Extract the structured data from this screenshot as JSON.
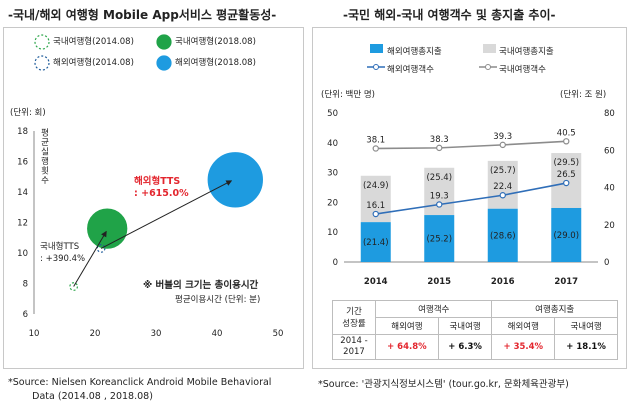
{
  "left": {
    "title": "-국내/해외 여행형 Mobile App서비스 평균활동성-",
    "legend": [
      {
        "label": "국내여행형(2014.08)",
        "style": "dashed",
        "color": "#2da64b"
      },
      {
        "label": "국내여행형(2018.08)",
        "style": "solid",
        "color": "#20a348"
      },
      {
        "label": "해외여행형(2014.08)",
        "style": "dashed",
        "color": "#1e5b9a"
      },
      {
        "label": "해외여행형(2018.08)",
        "style": "solid",
        "color": "#1e9be0"
      }
    ],
    "unit": "(단위: 회)",
    "ylabel": "평균실행횟수",
    "note": "※ 버블의 크기는 총이용시간",
    "xlabel": "평균이용시간 (단위: 분)",
    "annot_overseas": "해외형TTS\n: +615.0%",
    "annot_domestic": "국내형TTS\n: +390.4%"
  },
  "right": {
    "title": "-국민 해외-국내 여행객수 및 총지출 추이-",
    "legend": [
      {
        "label": "해외여행총지출",
        "kind": "bar",
        "color": "#1e9be0"
      },
      {
        "label": "국내여행총지출",
        "kind": "bar",
        "color": "#d9d9d9"
      },
      {
        "label": "해외여행객수",
        "kind": "line",
        "color": "#2f6eb8"
      },
      {
        "label": "국내여행객수",
        "kind": "line",
        "color": "#8c8c8c"
      }
    ],
    "unit_left": "(단위: 백만 명)",
    "unit_right": "(단위: 조 원)",
    "table": {
      "h_period": "기간",
      "h_growth": "성장률",
      "h_travelers": "여행객수",
      "h_spending": "여행총지출",
      "sub": [
        "해외여행",
        "국내여행",
        "해외여행",
        "국내여행"
      ],
      "period": "2014 - 2017",
      "values": [
        "+ 64.8%",
        "+ 6.3%",
        "+ 35.4%",
        "+ 18.1%"
      ]
    }
  },
  "source_left": "*Source: Nielsen Koreanclick Android Mobile Behavioral\n        Data (2014.08 , 2018.08)",
  "source_right": "*Source: '관광지식정보시스템' (tour.go.kr, 문화체육관광부)",
  "chart_data": [
    {
      "type": "scatter",
      "title": "-국내/해외 여행형 Mobile App서비스 평균활동성-",
      "xlabel": "평균이용시간 (단위: 분)",
      "ylabel": "평균실행횟수",
      "xlim": [
        10,
        50
      ],
      "ylim": [
        6,
        18
      ],
      "xticks": [
        10,
        20,
        30,
        40,
        50
      ],
      "yticks": [
        6,
        8,
        10,
        12,
        14,
        16,
        18
      ],
      "series": [
        {
          "name": "국내여행형(2014.08)",
          "x": 16.5,
          "y": 7.8,
          "size": 0.06
        },
        {
          "name": "국내여행형(2018.08)",
          "x": 22.0,
          "y": 11.6,
          "size": 0.31
        },
        {
          "name": "해외여행형(2014.08)",
          "x": 21.0,
          "y": 10.3,
          "size": 0.06
        },
        {
          "name": "해외여행형(2018.08)",
          "x": 43.0,
          "y": 14.8,
          "size": 0.43
        }
      ]
    },
    {
      "type": "bar",
      "title": "-국민 해외-국내 여행객수 및 총지출 추이-",
      "categories": [
        "2014",
        "2015",
        "2016",
        "2017"
      ],
      "y_left_ticks": [
        0,
        10,
        20,
        30,
        40,
        50
      ],
      "y_right_ticks": [
        0,
        20,
        40,
        60,
        80
      ],
      "ylim_left": [
        0,
        50
      ],
      "ylim_right": [
        0,
        80
      ],
      "series": [
        {
          "name": "해외여행총지출",
          "kind": "bar",
          "axis": "right",
          "values": [
            21.4,
            25.2,
            28.6,
            29.0
          ]
        },
        {
          "name": "국내여행총지출",
          "kind": "bar",
          "axis": "right",
          "values": [
            24.9,
            25.4,
            25.7,
            29.5
          ]
        },
        {
          "name": "해외여행객수",
          "kind": "line",
          "axis": "left",
          "values": [
            16.1,
            19.3,
            22.4,
            26.5
          ]
        },
        {
          "name": "국내여행객수",
          "kind": "line",
          "axis": "left",
          "values": [
            38.1,
            38.3,
            39.3,
            40.5
          ]
        }
      ]
    }
  ]
}
